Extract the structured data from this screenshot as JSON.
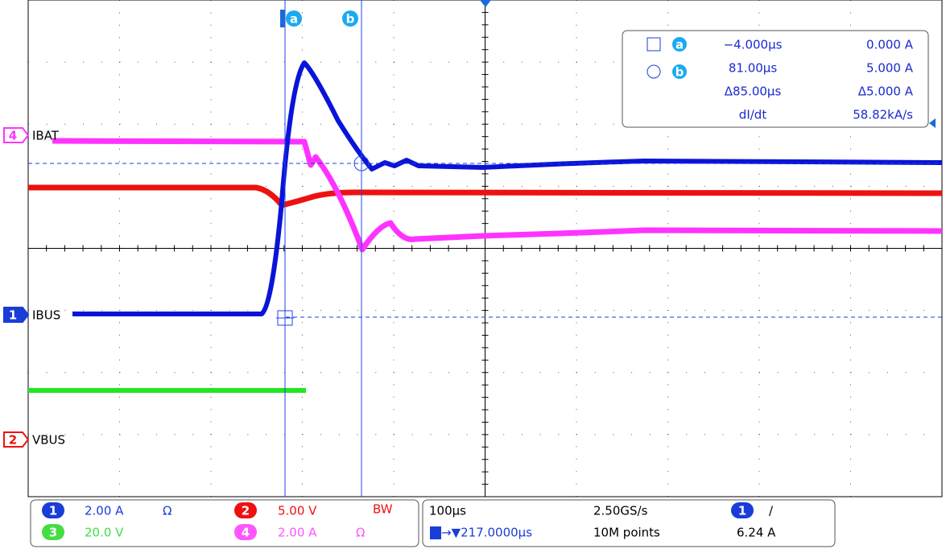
{
  "cursors": {
    "a": "a",
    "b": "b"
  },
  "readout": {
    "rows": [
      [
        "−4.000µs",
        "0.000 A"
      ],
      [
        "81.00µs",
        "5.000 A"
      ],
      [
        "Δ85.00µs",
        "Δ5.000 A"
      ],
      [
        "dI/dt",
        "58.82kA/s"
      ]
    ]
  },
  "channels": [
    {
      "number": "4",
      "label": "IBAT"
    },
    {
      "number": "1",
      "label": "IBUS"
    },
    {
      "number": "2",
      "label": "VBUS"
    }
  ],
  "status": {
    "ch1": {
      "number": "1",
      "scale": "2.00 A",
      "unit": "Ω"
    },
    "ch2": {
      "number": "2",
      "scale": "5.00 V",
      "flag": "BW"
    },
    "ch3": {
      "number": "3",
      "scale": "20.0 V"
    },
    "ch4": {
      "number": "4",
      "scale": "2.00 A",
      "unit": "Ω"
    },
    "timebase": "100µs",
    "sample_rate": "2.50GS/s",
    "trigger_pos": "→▼217.0000µs",
    "record": "10M points",
    "trigger_channel": "1",
    "trigger_slope": "/",
    "trigger_level": "6.24 A"
  }
}
